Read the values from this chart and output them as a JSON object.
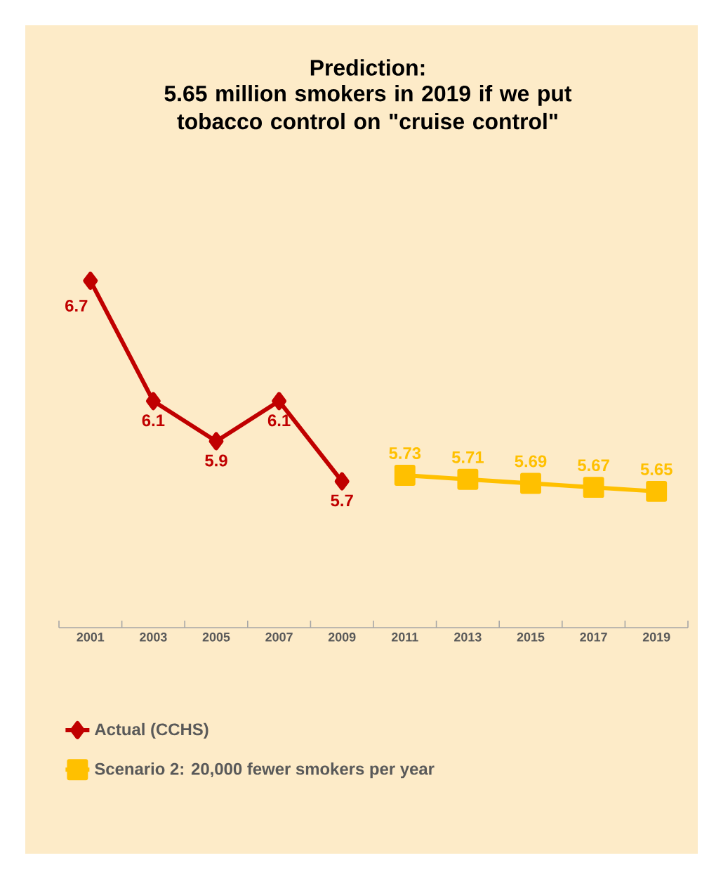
{
  "chart_data": {
    "type": "line",
    "title": "Prediction:",
    "subtitle": "5.65 million smokers in 2019 if we put tobacco control on \"cruise control\"",
    "categories": [
      "2001",
      "2003",
      "2005",
      "2007",
      "2009",
      "2011",
      "2013",
      "2015",
      "2017",
      "2019"
    ],
    "series": [
      {
        "name": "Actual (CCHS)",
        "color": "#c00000",
        "marker": "diamond",
        "values": [
          6.7,
          6.1,
          5.9,
          6.1,
          5.7,
          null,
          null,
          null,
          null,
          null
        ]
      },
      {
        "name": "Scenario 2: 20,000 fewer smokers per year",
        "color": "#ffc000",
        "marker": "square",
        "values": [
          null,
          null,
          null,
          null,
          null,
          5.73,
          5.71,
          5.69,
          5.67,
          5.65
        ]
      }
    ],
    "data_labels": true,
    "legend": "bottom",
    "grid": false,
    "line_style": "solid"
  }
}
